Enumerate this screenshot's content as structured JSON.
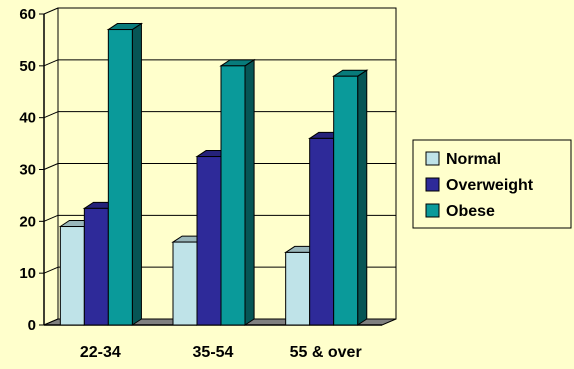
{
  "chart_data": {
    "type": "bar",
    "title": "",
    "xlabel": "",
    "ylabel": "",
    "ylim": [
      0,
      60
    ],
    "yticks": [
      "0",
      "10",
      "20",
      "30",
      "40",
      "50",
      "60"
    ],
    "categories": [
      "22-34",
      "35-54",
      "55 & over"
    ],
    "series": [
      {
        "name": "Normal",
        "values": [
          19,
          16,
          14
        ],
        "color": "#BFE3E8"
      },
      {
        "name": "Overweight",
        "values": [
          22.5,
          32.5,
          36
        ],
        "color": "#2E2A99"
      },
      {
        "name": "Obese",
        "values": [
          57,
          50,
          48
        ],
        "color": "#0A9A9A"
      }
    ],
    "grid": true,
    "legend": "right",
    "style_3d": true
  }
}
